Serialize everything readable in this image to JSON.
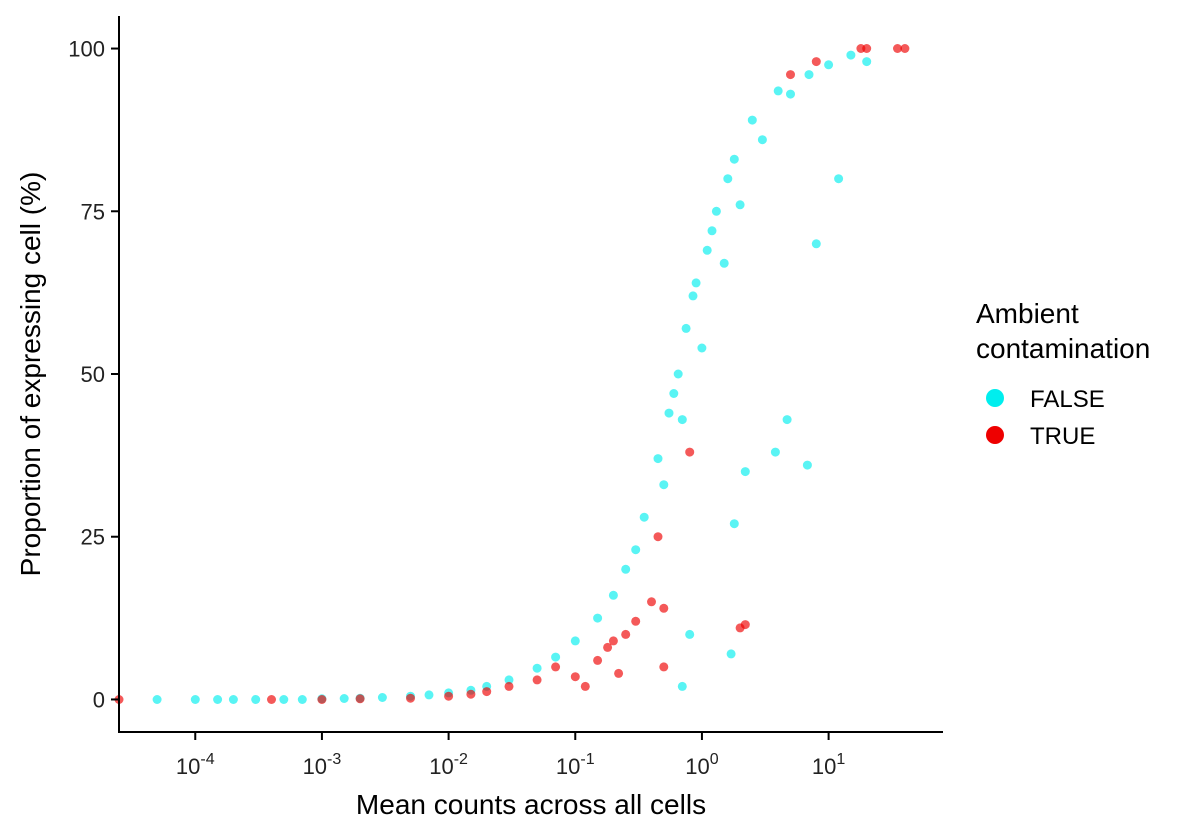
{
  "chart_data": {
    "type": "scatter",
    "xlabel": "Mean counts across all cells",
    "ylabel": "Proportion of expressing cell (%)",
    "x_scale": "log10",
    "xlim": [
      2.5e-05,
      80
    ],
    "ylim": [
      -5,
      105
    ],
    "x_ticks": [
      {
        "value": 0.0001,
        "base": "10",
        "exp": "-4"
      },
      {
        "value": 0.001,
        "base": "10",
        "exp": "-3"
      },
      {
        "value": 0.01,
        "base": "10",
        "exp": "-2"
      },
      {
        "value": 0.1,
        "base": "10",
        "exp": "-1"
      },
      {
        "value": 1,
        "base": "10",
        "exp": "0"
      },
      {
        "value": 10,
        "base": "10",
        "exp": "1"
      }
    ],
    "y_ticks": [
      {
        "value": 0,
        "label": "0"
      },
      {
        "value": 25,
        "label": "25"
      },
      {
        "value": 50,
        "label": "50"
      },
      {
        "value": 75,
        "label": "75"
      },
      {
        "value": 100,
        "label": "100"
      }
    ],
    "grid": false,
    "legend": {
      "title_lines": [
        "Ambient",
        "contamination"
      ],
      "position": "right"
    },
    "series": [
      {
        "name": "FALSE",
        "color": "#00eeee",
        "x": [
          5e-05,
          0.0001,
          0.00015,
          0.0002,
          0.0003,
          0.0005,
          0.0007,
          0.001,
          0.0015,
          0.002,
          0.003,
          0.005,
          0.007,
          0.01,
          0.015,
          0.02,
          0.03,
          0.05,
          0.07,
          0.1,
          0.15,
          0.2,
          0.3,
          0.5,
          0.7,
          1.0,
          1.5,
          2.0,
          3.0,
          5.0,
          7.0,
          10.0,
          15.0,
          0.25,
          0.35,
          0.45,
          0.55,
          0.6,
          0.65,
          0.75,
          0.85,
          0.9,
          1.1,
          1.2,
          1.3,
          1.6,
          1.8,
          2.5,
          4.0,
          6.8,
          3.8,
          2.2,
          1.8,
          0.8,
          0.7,
          4.7,
          12.0,
          8.0,
          20.0,
          1.7
        ],
        "y": [
          0,
          0,
          0,
          0,
          0,
          0,
          0,
          0.1,
          0.15,
          0.2,
          0.3,
          0.5,
          0.7,
          1.0,
          1.4,
          2.0,
          3.0,
          4.8,
          6.5,
          9.0,
          12.5,
          16.0,
          23.0,
          33.0,
          43.0,
          54.0,
          67.0,
          76.0,
          86.0,
          93.0,
          96.0,
          97.5,
          99.0,
          20.0,
          28.0,
          37.0,
          44.0,
          47.0,
          50.0,
          57.0,
          62.0,
          64.0,
          69.0,
          72.0,
          75.0,
          80.0,
          83.0,
          89.0,
          93.5,
          36.0,
          38.0,
          35.0,
          27.0,
          10.0,
          2.0,
          43.0,
          80.0,
          70.0,
          98.0,
          7.0
        ]
      },
      {
        "name": "TRUE",
        "color": "#ee0000",
        "x": [
          2.5e-05,
          0.0004,
          0.001,
          0.002,
          0.005,
          0.01,
          0.015,
          0.02,
          0.03,
          0.05,
          0.07,
          0.1,
          0.15,
          0.2,
          0.25,
          0.3,
          0.4,
          0.5,
          0.5,
          0.8,
          2.0,
          2.2,
          5.0,
          8.0,
          18.0,
          20.0,
          35.0,
          40.0,
          0.12,
          0.18,
          0.22,
          0.45
        ],
        "y": [
          0,
          0,
          0,
          0.1,
          0.2,
          0.5,
          0.8,
          1.2,
          2.0,
          3.0,
          5.0,
          3.5,
          6.0,
          9.0,
          10.0,
          12.0,
          15.0,
          14.0,
          5.0,
          38.0,
          11.0,
          11.5,
          96.0,
          98.0,
          100,
          100,
          100,
          100,
          2.0,
          8.0,
          4.0,
          25.0
        ]
      }
    ]
  }
}
